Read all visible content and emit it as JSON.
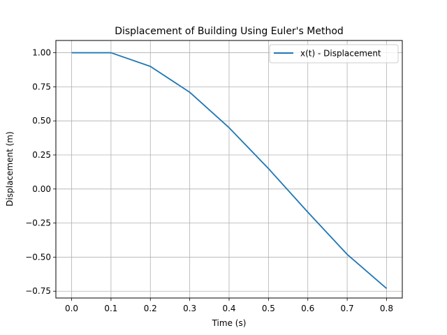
{
  "chart_data": {
    "type": "line",
    "title": "Displacement of Building Using Euler's Method",
    "xlabel": "Time (s)",
    "ylabel": "Displacement (m)",
    "xlim": [
      -0.04,
      0.84
    ],
    "ylim": [
      -0.8,
      1.09
    ],
    "x_ticks": [
      "0.0",
      "0.1",
      "0.2",
      "0.3",
      "0.4",
      "0.5",
      "0.6",
      "0.7",
      "0.8"
    ],
    "y_ticks": [
      "1.00",
      "0.75",
      "0.50",
      "0.25",
      "0.00",
      "−0.25",
      "−0.50",
      "−0.75"
    ],
    "grid": true,
    "legend_position": "upper right",
    "series": [
      {
        "name": "x(t) - Displacement",
        "color": "#1f77b4",
        "x": [
          0.0,
          0.1,
          0.2,
          0.3,
          0.4,
          0.5,
          0.6,
          0.7,
          0.8
        ],
        "y": [
          1.0,
          1.0,
          0.9,
          0.71,
          0.45,
          0.15,
          -0.17,
          -0.48,
          -0.73
        ]
      }
    ]
  }
}
